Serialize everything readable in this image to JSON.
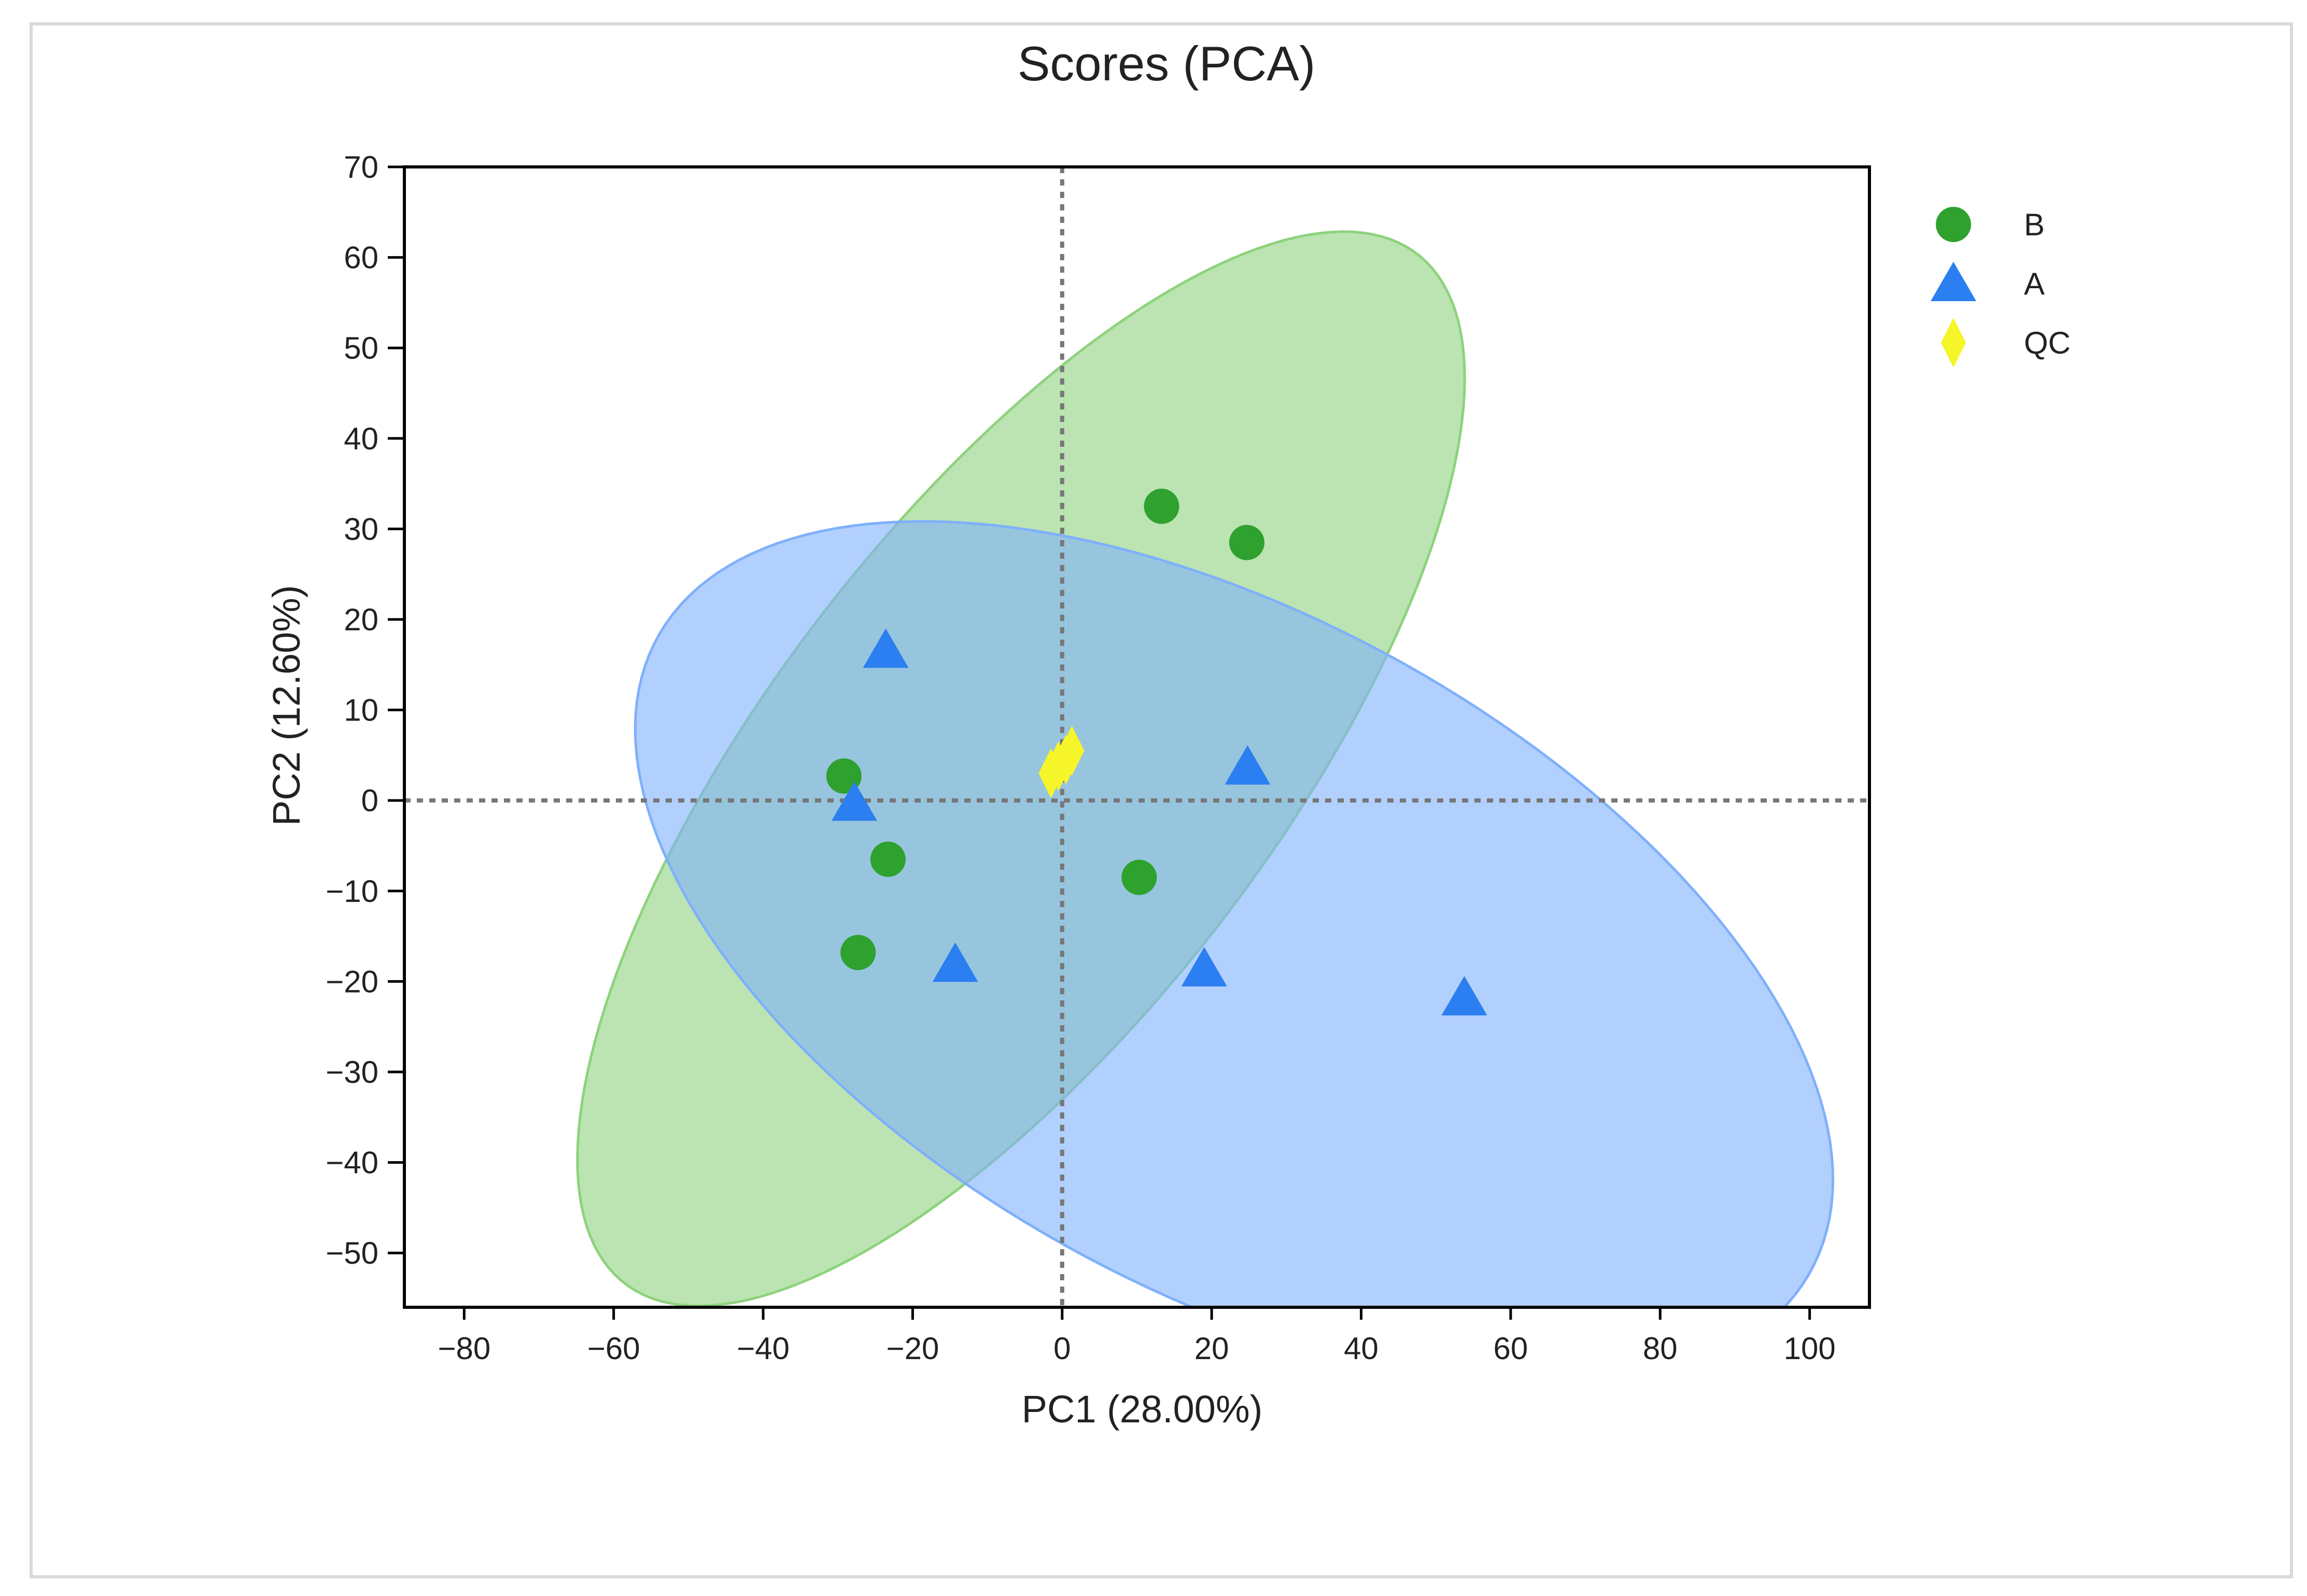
{
  "chart_data": {
    "type": "scatter",
    "title": "Scores (PCA)",
    "xlabel": "PC1 (28.00%)",
    "ylabel": "PC2 (12.60%)",
    "xlim": [
      -88,
      108
    ],
    "ylim": [
      -56,
      70
    ],
    "xticks": [
      -80,
      -60,
      -40,
      -20,
      0,
      20,
      40,
      60,
      80,
      100
    ],
    "yticks": [
      -50,
      -40,
      -30,
      -20,
      -10,
      0,
      10,
      20,
      30,
      40,
      50,
      60,
      70
    ],
    "xtick_labels": [
      "−80",
      "−60",
      "−40",
      "−20",
      "0",
      "20",
      "40",
      "60",
      "80",
      "100"
    ],
    "ytick_labels": [
      "−50",
      "−40",
      "−30",
      "−20",
      "−10",
      "0",
      "10",
      "20",
      "30",
      "40",
      "50",
      "60",
      "70"
    ],
    "reference_lines": {
      "x": 0,
      "y": 0
    },
    "legend_position": "right",
    "series": [
      {
        "name": "B",
        "marker": "circle",
        "color": "#2ea12e",
        "ellipse_color": "#8ed27e",
        "ellipse": {
          "center": [
            -5.5,
            3.5
          ],
          "semi_axis_major": 78,
          "semi_axis_minor": 31,
          "angle_deg": 45
        },
        "points": [
          [
            13.3,
            32.5
          ],
          [
            24.7,
            28.5
          ],
          [
            -29.2,
            2.7
          ],
          [
            -23.3,
            -6.5
          ],
          [
            10.3,
            -8.5
          ],
          [
            -27.3,
            -16.8
          ]
        ]
      },
      {
        "name": "A",
        "marker": "triangle",
        "color": "#2b7ff0",
        "ellipse_color": "#7fb0fb",
        "ellipse": {
          "center": [
            23,
            -17
          ],
          "semi_axis_major": 85,
          "semi_axis_minor": 38.5,
          "angle_deg": -22
        },
        "points": [
          [
            -23.6,
            16.6
          ],
          [
            24.8,
            3.7
          ],
          [
            -27.8,
            -0.3
          ],
          [
            -14.3,
            -18.1
          ],
          [
            19.0,
            -18.6
          ],
          [
            53.8,
            -21.8
          ]
        ]
      },
      {
        "name": "QC",
        "marker": "diamond",
        "color": "#f5f52a",
        "points": [
          [
            -1.5,
            3.0
          ],
          [
            -0.5,
            3.8
          ],
          [
            0.5,
            4.5
          ],
          [
            1.3,
            5.5
          ]
        ]
      }
    ]
  }
}
